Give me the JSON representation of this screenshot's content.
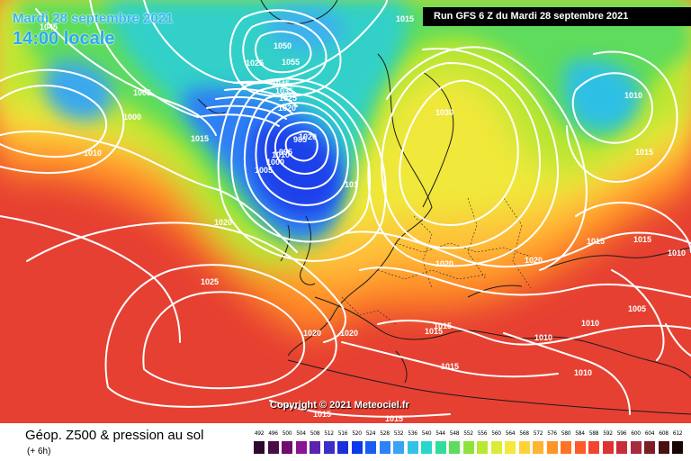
{
  "header": {
    "date_label": "Mardi 28 septembre 2021",
    "time_label": "14:00 locale",
    "run_label": "Run GFS 6 Z du Mardi 28 septembre 2021"
  },
  "footer": {
    "title": "Géop. Z500 & pression au sol",
    "subtitle": "(+ 6h)",
    "copyright": "Copyright © 2021 Meteociel.fr"
  },
  "isobar_labels": [
    "1045",
    "1015",
    "1050",
    "1055",
    "1045",
    "1035",
    "1025",
    "1020",
    "1005",
    "1000",
    "1015",
    "1010",
    "1020",
    "1025",
    "1030",
    "1010",
    "1015",
    "1015",
    "1015",
    "1020",
    "1020",
    "1020",
    "1020",
    "1010",
    "1010",
    "1005",
    "1010",
    "1015",
    "1015",
    "1015",
    "1010",
    "1020",
    "1010",
    "1005",
    "995",
    "985",
    "101",
    "1025",
    "1000",
    "1015",
    "1015"
  ],
  "scale": {
    "labels": [
      "492",
      "496",
      "500",
      "504",
      "508",
      "512",
      "516",
      "520",
      "524",
      "528",
      "532",
      "536",
      "540",
      "544",
      "548",
      "552",
      "556",
      "560",
      "564",
      "568",
      "572",
      "576",
      "580",
      "584",
      "588",
      "592",
      "596",
      "600",
      "604",
      "608",
      "612"
    ],
    "colors": [
      "#2d0a2d",
      "#4a0d48",
      "#6e0d6e",
      "#8a1491",
      "#5a24ad",
      "#3b2fc8",
      "#1c2fd9",
      "#0a39ee",
      "#1a5bf4",
      "#2f82f6",
      "#3ba4f0",
      "#31c3e6",
      "#28d6cc",
      "#34dc9c",
      "#5fdc5c",
      "#8fe23a",
      "#b9e830",
      "#dcec36",
      "#f4e93c",
      "#ffd23a",
      "#ffb52e",
      "#ff9426",
      "#ff7324",
      "#ff5a2a",
      "#f2452f",
      "#e03232",
      "#c82d3a",
      "#a82a3e",
      "#7c1f24",
      "#4a1010",
      "#1a0505"
    ]
  }
}
